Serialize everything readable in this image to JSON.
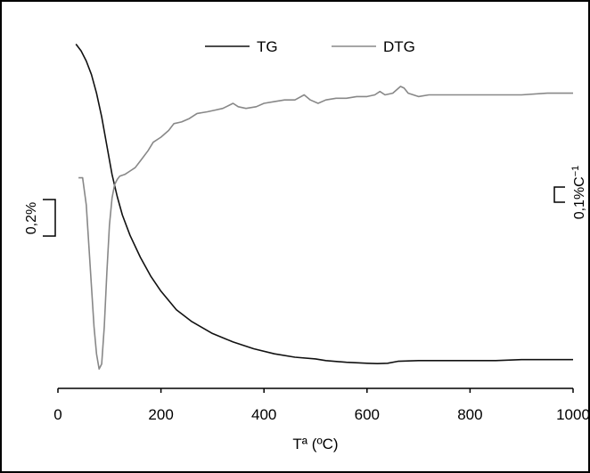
{
  "chart_data": {
    "type": "line",
    "xlabel": "Tª (ºC)",
    "xlim": [
      0,
      1000
    ],
    "xticks": [
      0,
      200,
      400,
      600,
      800,
      1000
    ],
    "tick_labels": [
      "0",
      "200",
      "400",
      "600",
      "800",
      "1000"
    ],
    "legend_position": "top",
    "grid": false,
    "scale_bars": {
      "left": "0,2%",
      "right_base": "0,1%C",
      "right_sup": "−1"
    },
    "series": [
      {
        "name": "TG",
        "color": "#111111",
        "x": [
          35,
          45,
          55,
          65,
          75,
          85,
          95,
          105,
          115,
          125,
          140,
          160,
          180,
          200,
          230,
          260,
          300,
          340,
          380,
          420,
          460,
          500,
          520,
          560,
          600,
          620,
          640,
          660,
          700,
          750,
          800,
          850,
          900,
          950,
          1000
        ],
        "y": [
          0.975,
          0.955,
          0.925,
          0.885,
          0.83,
          0.76,
          0.675,
          0.59,
          0.525,
          0.47,
          0.41,
          0.345,
          0.29,
          0.245,
          0.19,
          0.155,
          0.12,
          0.095,
          0.075,
          0.06,
          0.05,
          0.045,
          0.04,
          0.035,
          0.032,
          0.031,
          0.032,
          0.038,
          0.04,
          0.04,
          0.04,
          0.04,
          0.043,
          0.043,
          0.043
        ]
      },
      {
        "name": "DTG",
        "color": "#888888",
        "x": [
          40,
          48,
          55,
          60,
          65,
          70,
          75,
          80,
          85,
          90,
          95,
          100,
          105,
          110,
          115,
          120,
          130,
          140,
          150,
          160,
          175,
          185,
          200,
          215,
          225,
          240,
          255,
          270,
          290,
          305,
          320,
          340,
          350,
          365,
          385,
          400,
          420,
          440,
          460,
          478,
          490,
          505,
          520,
          540,
          560,
          580,
          600,
          615,
          625,
          635,
          650,
          665,
          672,
          680,
          700,
          720,
          740,
          760,
          780,
          800,
          850,
          900,
          950,
          1000
        ],
        "y": [
          0.58,
          0.58,
          0.5,
          0.38,
          0.26,
          0.14,
          0.06,
          0.015,
          0.03,
          0.14,
          0.3,
          0.44,
          0.52,
          0.56,
          0.575,
          0.585,
          0.59,
          0.6,
          0.61,
          0.63,
          0.66,
          0.685,
          0.7,
          0.72,
          0.74,
          0.745,
          0.755,
          0.77,
          0.775,
          0.78,
          0.785,
          0.8,
          0.79,
          0.785,
          0.79,
          0.8,
          0.805,
          0.81,
          0.81,
          0.825,
          0.81,
          0.8,
          0.81,
          0.815,
          0.815,
          0.82,
          0.82,
          0.825,
          0.835,
          0.825,
          0.83,
          0.85,
          0.845,
          0.83,
          0.82,
          0.825,
          0.825,
          0.825,
          0.825,
          0.825,
          0.825,
          0.825,
          0.83,
          0.83
        ]
      }
    ]
  }
}
